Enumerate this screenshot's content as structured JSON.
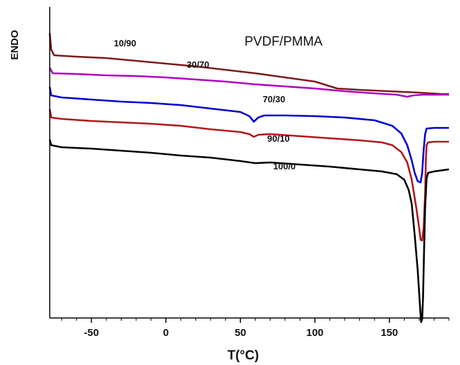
{
  "chart_data": {
    "type": "line",
    "title": "",
    "annotation": "PVDF/PMMA",
    "xlabel": "T(°C)",
    "ylabel": "ENDO",
    "xlim": [
      -78,
      190
    ],
    "x_ticks": [
      -50,
      0,
      50,
      100,
      150
    ],
    "y_ticks": [],
    "grid": false,
    "series": [
      {
        "name": "10/90",
        "color": "#7b1a1a",
        "points": [
          [
            -78,
            38
          ],
          [
            -77,
            62
          ],
          [
            -75,
            70
          ],
          [
            -60,
            72
          ],
          [
            -40,
            74
          ],
          [
            -20,
            78
          ],
          [
            0,
            82
          ],
          [
            20,
            86
          ],
          [
            40,
            91
          ],
          [
            60,
            96
          ],
          [
            80,
            102
          ],
          [
            100,
            108
          ],
          [
            115,
            118
          ],
          [
            130,
            120
          ],
          [
            150,
            122
          ],
          [
            170,
            124
          ],
          [
            185,
            126
          ],
          [
            190,
            126
          ]
        ]
      },
      {
        "name": "30/70",
        "color": "#b000c0",
        "points": [
          [
            -78,
            88
          ],
          [
            -76,
            96
          ],
          [
            -60,
            97
          ],
          [
            -40,
            99
          ],
          [
            -20,
            100
          ],
          [
            0,
            102
          ],
          [
            20,
            105
          ],
          [
            40,
            108
          ],
          [
            60,
            112
          ],
          [
            80,
            115
          ],
          [
            100,
            118
          ],
          [
            120,
            122
          ],
          [
            140,
            125
          ],
          [
            155,
            127
          ],
          [
            162,
            130
          ],
          [
            166,
            128
          ],
          [
            172,
            127
          ],
          [
            180,
            127
          ],
          [
            190,
            127
          ]
        ]
      },
      {
        "name": "70/30",
        "color": "#0000d0",
        "points": [
          [
            -78,
            116
          ],
          [
            -77,
            128
          ],
          [
            -70,
            131
          ],
          [
            -50,
            134
          ],
          [
            -30,
            137
          ],
          [
            -10,
            139
          ],
          [
            10,
            142
          ],
          [
            30,
            147
          ],
          [
            50,
            152
          ],
          [
            56,
            158
          ],
          [
            59,
            166
          ],
          [
            62,
            160
          ],
          [
            66,
            157
          ],
          [
            80,
            157
          ],
          [
            100,
            158
          ],
          [
            120,
            160
          ],
          [
            140,
            164
          ],
          [
            152,
            172
          ],
          [
            158,
            183
          ],
          [
            162,
            200
          ],
          [
            165,
            222
          ],
          [
            167,
            240
          ],
          [
            169,
            252
          ],
          [
            171,
            254
          ],
          [
            172,
            240
          ],
          [
            173,
            208
          ],
          [
            174,
            184
          ],
          [
            175,
            176
          ],
          [
            180,
            175
          ],
          [
            190,
            175
          ]
        ]
      },
      {
        "name": "90/10",
        "color": "#b01818",
        "points": [
          [
            -78,
            148
          ],
          [
            -77,
            160
          ],
          [
            -70,
            162
          ],
          [
            -50,
            165
          ],
          [
            -30,
            167
          ],
          [
            -10,
            169
          ],
          [
            10,
            172
          ],
          [
            30,
            177
          ],
          [
            50,
            181
          ],
          [
            56,
            184
          ],
          [
            59,
            188
          ],
          [
            62,
            185
          ],
          [
            70,
            184
          ],
          [
            90,
            187
          ],
          [
            110,
            190
          ],
          [
            130,
            193
          ],
          [
            145,
            196
          ],
          [
            152,
            200
          ],
          [
            158,
            210
          ],
          [
            162,
            225
          ],
          [
            165,
            250
          ],
          [
            168,
            290
          ],
          [
            170,
            320
          ],
          [
            171,
            337
          ],
          [
            172,
            338
          ],
          [
            173,
            320
          ],
          [
            174,
            270
          ],
          [
            174.5,
            220
          ],
          [
            175,
            200
          ],
          [
            176,
            196
          ],
          [
            180,
            195
          ],
          [
            190,
            195
          ]
        ]
      },
      {
        "name": "100/0",
        "color": "#000000",
        "points": [
          [
            -78,
            192
          ],
          [
            -77,
            200
          ],
          [
            -70,
            203
          ],
          [
            -50,
            205
          ],
          [
            -30,
            208
          ],
          [
            -10,
            211
          ],
          [
            10,
            215
          ],
          [
            30,
            218
          ],
          [
            50,
            223
          ],
          [
            60,
            226
          ],
          [
            70,
            225
          ],
          [
            90,
            228
          ],
          [
            110,
            231
          ],
          [
            130,
            235
          ],
          [
            145,
            238
          ],
          [
            155,
            242
          ],
          [
            160,
            250
          ],
          [
            163,
            265
          ],
          [
            165,
            285
          ],
          [
            167,
            330
          ],
          [
            169,
            380
          ],
          [
            170.5,
            430
          ],
          [
            171.3,
            456
          ],
          [
            172,
            452
          ],
          [
            172.6,
            420
          ],
          [
            173.2,
            360
          ],
          [
            174,
            290
          ],
          [
            175,
            248
          ],
          [
            176,
            240
          ],
          [
            180,
            238
          ],
          [
            190,
            235
          ]
        ]
      }
    ]
  }
}
